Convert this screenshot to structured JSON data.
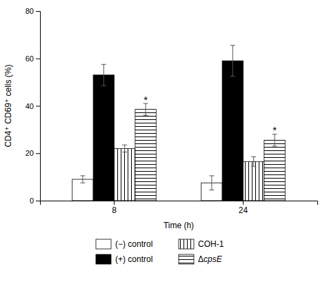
{
  "chart_data": {
    "type": "bar",
    "categories": [
      "8",
      "24"
    ],
    "series": [
      {
        "name": "(−) control",
        "color": "white",
        "values": [
          9.0,
          7.5
        ],
        "errors": [
          1.5,
          3.0
        ]
      },
      {
        "name": "(+) control",
        "color": "black",
        "values": [
          53.0,
          59.0
        ],
        "errors": [
          4.5,
          6.5
        ]
      },
      {
        "name": "COH-1",
        "color": "white",
        "values": [
          22.0,
          16.5
        ],
        "errors": [
          1.5,
          2.0
        ]
      },
      {
        "name": "ΔcpsE",
        "color": "white",
        "values": [
          38.5,
          25.5
        ],
        "errors": [
          2.5,
          2.5
        ]
      }
    ],
    "annotations": [
      {
        "text": "*",
        "category": "8",
        "series": "ΔcpsE"
      },
      {
        "text": "*",
        "category": "24",
        "series": "ΔcpsE"
      }
    ],
    "xlabel": "Time (h)",
    "ylabel": "CD4⁺ CD69⁺ cells (%)",
    "ylim": [
      0,
      80
    ],
    "yticks": [
      0,
      20,
      40,
      60,
      80
    ],
    "grid": false,
    "legend": "bottom"
  }
}
